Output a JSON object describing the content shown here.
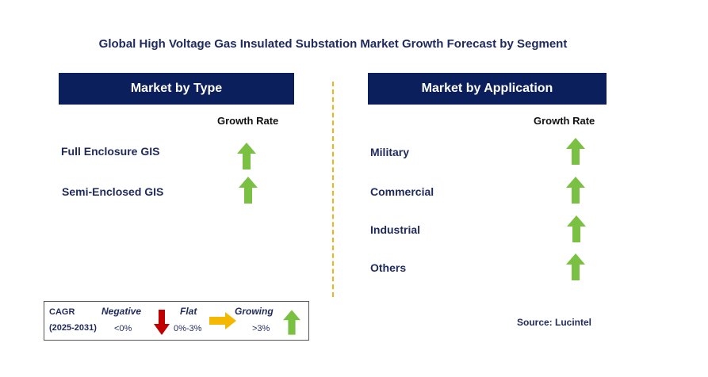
{
  "title": "Global High Voltage Gas Insulated Substation Market Growth Forecast by Segment",
  "left_panel": {
    "header": "Market by Type",
    "growth_label": "Growth Rate",
    "segments": [
      "Full Enclosure GIS",
      "Semi-Enclosed GIS"
    ],
    "trend": [
      "growing",
      "growing"
    ]
  },
  "right_panel": {
    "header": "Market by Application",
    "growth_label": "Growth Rate",
    "segments": [
      "Military",
      "Commercial",
      "Industrial",
      "Others"
    ],
    "trend": [
      "growing",
      "growing",
      "growing",
      "growing"
    ]
  },
  "legend": {
    "cagr_label": "CAGR",
    "period": "(2025-2031)",
    "negative_label": "Negative",
    "negative_range": "<0%",
    "flat_label": "Flat",
    "flat_range": "0%-3%",
    "growing_label": "Growing",
    "growing_range": ">3%"
  },
  "source": "Source: Lucintel",
  "colors": {
    "header_bg": "#0b1f5c",
    "growing_arrow": "#7ac143",
    "negative_arrow": "#c00000",
    "flat_arrow": "#f5b800",
    "divider": "#f2b21c"
  }
}
